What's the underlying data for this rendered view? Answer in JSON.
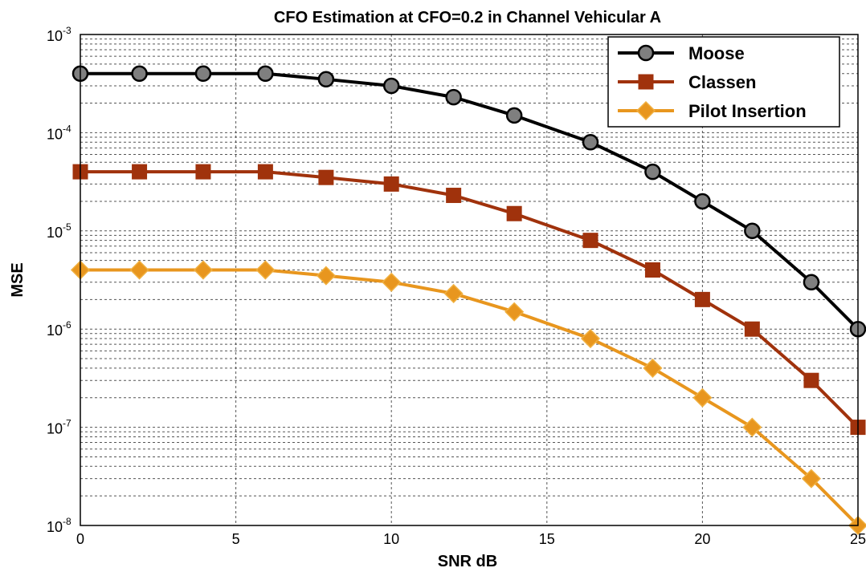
{
  "chart_data": {
    "type": "line",
    "title": "CFO Estimation at CFO=0.2 in Channel Vehicular A",
    "xlabel": "SNR dB",
    "ylabel": "MSE",
    "xlim": [
      0,
      25
    ],
    "ylim": [
      1e-08,
      0.001
    ],
    "yscale": "log",
    "grid": true,
    "legend_position": "top-right",
    "x_ticks": [
      0,
      5,
      10,
      15,
      20,
      25
    ],
    "y_ticks": [
      {
        "base": "10",
        "exp": "-8",
        "value": 1e-08
      },
      {
        "base": "10",
        "exp": "-7",
        "value": 1e-07
      },
      {
        "base": "10",
        "exp": "-6",
        "value": 1e-06
      },
      {
        "base": "10",
        "exp": "-5",
        "value": 1e-05
      },
      {
        "base": "10",
        "exp": "-4",
        "value": 0.0001
      },
      {
        "base": "10",
        "exp": "-3",
        "value": 0.001
      }
    ],
    "x": [
      0,
      1.9,
      3.95,
      5.95,
      7.9,
      10,
      12,
      13.95,
      16.4,
      18.4,
      20,
      21.6,
      23.5,
      25
    ],
    "series": [
      {
        "name": "Moose",
        "color": "#000000",
        "marker": "circle",
        "values": [
          0.0004,
          0.0004,
          0.0004,
          0.0004,
          0.00035,
          0.0003,
          0.00023,
          0.00015,
          8e-05,
          4e-05,
          2e-05,
          1e-05,
          3e-06,
          1e-06
        ]
      },
      {
        "name": "Classen",
        "color": "#a0320c",
        "marker": "square",
        "values": [
          4e-05,
          4e-05,
          4e-05,
          4e-05,
          3.5e-05,
          3e-05,
          2.3e-05,
          1.5e-05,
          8e-06,
          4e-06,
          2e-06,
          1e-06,
          3e-07,
          1e-07
        ]
      },
      {
        "name": "Pilot Insertion",
        "color": "#e8961e",
        "marker": "diamond",
        "values": [
          4e-06,
          4e-06,
          4e-06,
          4e-06,
          3.5e-06,
          3e-06,
          2.3e-06,
          1.5e-06,
          8e-07,
          4e-07,
          2e-07,
          1e-07,
          3e-08,
          1e-08
        ]
      }
    ]
  }
}
